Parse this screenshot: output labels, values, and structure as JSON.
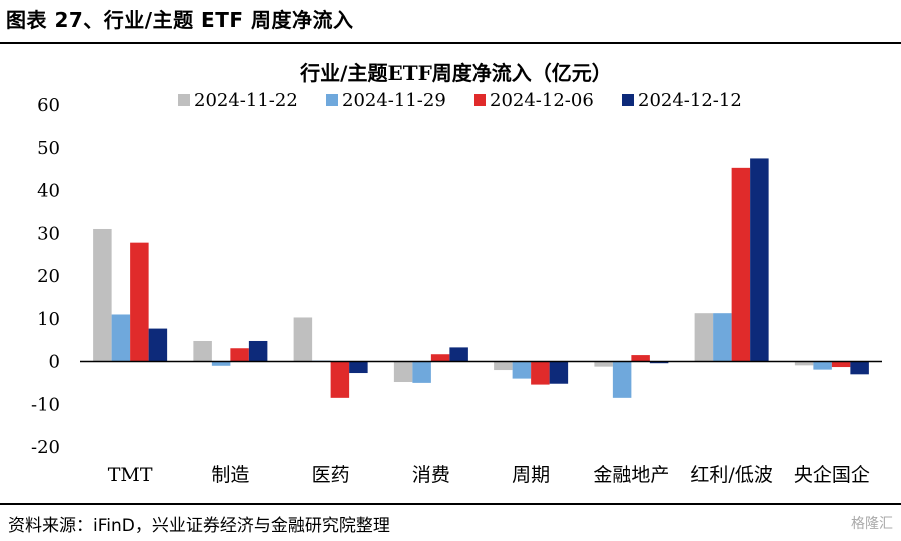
{
  "figure_title": "图表 27、行业/主题 ETF 周度净流入",
  "source": "资料来源：iFinD，兴业证券经济与金融研究院整理",
  "watermark": "格隆汇",
  "chart_data": {
    "type": "bar",
    "title": "行业/主题ETF周度净流入（亿元）",
    "categories": [
      "TMT",
      "制造",
      "医药",
      "消费",
      "周期",
      "金融地产",
      "红利/低波",
      "央企国企"
    ],
    "series": [
      {
        "name": "2024-11-22",
        "color": "#bfbfbf",
        "values": [
          31.0,
          4.8,
          10.3,
          -4.8,
          -2.0,
          -1.2,
          11.3,
          -0.9
        ]
      },
      {
        "name": "2024-11-29",
        "color": "#6fa8dc",
        "values": [
          11.0,
          -1.0,
          0.2,
          -5.0,
          -4.0,
          -8.5,
          11.3,
          -1.9
        ]
      },
      {
        "name": "2024-12-06",
        "color": "#e02b2b",
        "values": [
          27.8,
          3.1,
          -8.5,
          1.7,
          -5.4,
          1.5,
          45.3,
          -1.3
        ]
      },
      {
        "name": "2024-12-12",
        "color": "#0d2a7a",
        "values": [
          7.7,
          4.8,
          -2.7,
          3.3,
          -5.2,
          -0.4,
          47.5,
          -3.0
        ]
      }
    ],
    "ylim": [
      -20,
      60
    ],
    "yticks": [
      -20,
      -10,
      0,
      10,
      20,
      30,
      40,
      50,
      60
    ],
    "legend_position": "top",
    "grid": false
  }
}
